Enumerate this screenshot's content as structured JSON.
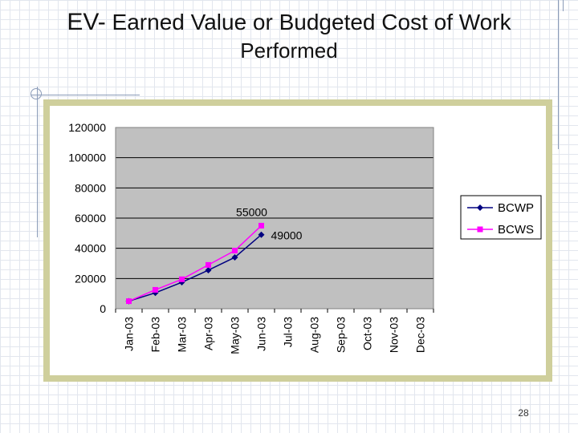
{
  "slide": {
    "title_lead": "EV-",
    "title_rest": " Earned Value or Budgeted Cost of Work",
    "title_line2": "Performed",
    "page_number": "28"
  },
  "chart_data": {
    "type": "line",
    "title": "",
    "xlabel": "",
    "ylabel": "",
    "categories": [
      "Jan-03",
      "Feb-03",
      "Mar-03",
      "Apr-03",
      "May-03",
      "Jun-03",
      "Jul-03",
      "Aug-03",
      "Sep-03",
      "Oct-03",
      "Nov-03",
      "Dec-03"
    ],
    "ylim": [
      0,
      120000
    ],
    "yticks": [
      0,
      20000,
      40000,
      60000,
      80000,
      100000,
      120000
    ],
    "y_tick_labels": [
      "0",
      "20000",
      "40000",
      "60000",
      "80000",
      "100000",
      "120000"
    ],
    "grid": true,
    "legend": "right",
    "series": [
      {
        "name": "BCWP",
        "color": "#000080",
        "marker": "diamond",
        "values": [
          5000,
          10500,
          17500,
          25500,
          34000,
          49000,
          null,
          null,
          null,
          null,
          null,
          null
        ]
      },
      {
        "name": "BCWS",
        "color": "#ff00ff",
        "marker": "square",
        "values": [
          5000,
          12500,
          19500,
          29000,
          38500,
          55000,
          null,
          null,
          null,
          null,
          null,
          null
        ]
      }
    ],
    "annotations": [
      {
        "series": 1,
        "index": 5,
        "text": "55000",
        "position": "above"
      },
      {
        "series": 0,
        "index": 5,
        "text": "49000",
        "position": "right"
      }
    ],
    "plot_background": "#c0c0c0"
  }
}
